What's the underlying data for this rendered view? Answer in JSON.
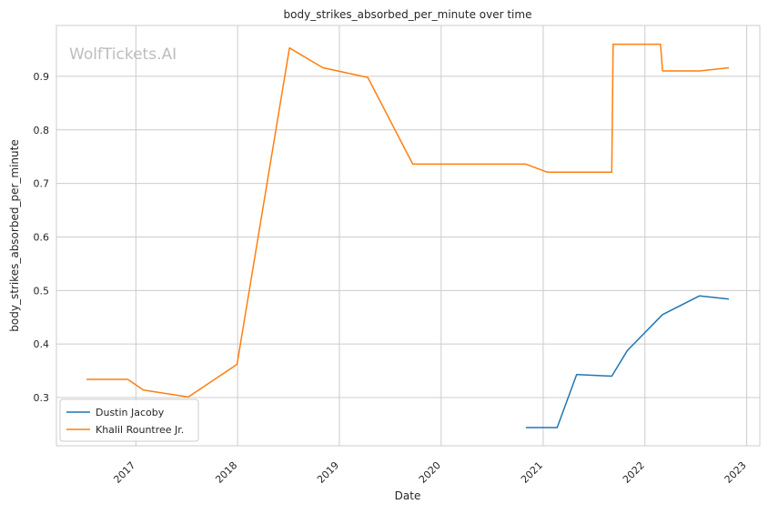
{
  "chart_data": {
    "type": "line",
    "title": "body_strikes_absorbed_per_minute over time",
    "xlabel": "Date",
    "ylabel": "body_strikes_absorbed_per_minute",
    "watermark": "WolfTickets.AI",
    "xlim": [
      "2016-03-22",
      "2023-02-17"
    ],
    "ylim": [
      0.21,
      0.995
    ],
    "x_ticks": [
      "2017",
      "2018",
      "2019",
      "2020",
      "2021",
      "2022",
      "2023"
    ],
    "y_ticks": [
      0.3,
      0.4,
      0.5,
      0.6,
      0.7,
      0.8,
      0.9
    ],
    "grid": true,
    "legend_position": "lower-left",
    "series": [
      {
        "name": "Dustin Jacoby",
        "color": "#1f77b4",
        "points": [
          [
            "2020-10-31",
            0.244
          ],
          [
            "2021-02-20",
            0.244
          ],
          [
            "2021-05-01",
            0.343
          ],
          [
            "2021-09-04",
            0.34
          ],
          [
            "2021-10-30",
            0.388
          ],
          [
            "2022-03-05",
            0.455
          ],
          [
            "2022-07-16",
            0.49
          ],
          [
            "2022-10-29",
            0.484
          ]
        ]
      },
      {
        "name": "Khalil Rountree Jr.",
        "color": "#ff7f0e",
        "points": [
          [
            "2016-07-08",
            0.334
          ],
          [
            "2016-12-03",
            0.334
          ],
          [
            "2017-01-28",
            0.314
          ],
          [
            "2017-07-08",
            0.301
          ],
          [
            "2017-12-30",
            0.362
          ],
          [
            "2018-07-06",
            0.953
          ],
          [
            "2018-11-03",
            0.916
          ],
          [
            "2019-04-13",
            0.898
          ],
          [
            "2019-09-21",
            0.736
          ],
          [
            "2020-10-31",
            0.736
          ],
          [
            "2021-01-16",
            0.721
          ],
          [
            "2021-09-04",
            0.721
          ],
          [
            "2021-09-09",
            0.96
          ],
          [
            "2022-02-26",
            0.96
          ],
          [
            "2022-03-05",
            0.91
          ],
          [
            "2022-07-16",
            0.91
          ],
          [
            "2022-10-29",
            0.916
          ]
        ]
      }
    ]
  }
}
